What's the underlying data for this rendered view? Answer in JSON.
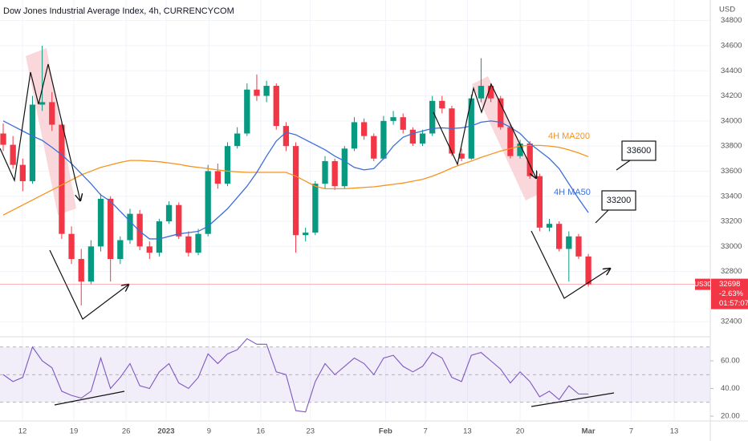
{
  "chart_data": {
    "type": "candlestick",
    "title": "Dow Jones Industrial Average Index, 4h, CURRENCYCOM",
    "currency": "USD",
    "symbol": "US30",
    "last_price": 32698,
    "change_label": "-2.63%",
    "countdown": "01:57:07",
    "up_color": "#089981",
    "down_color": "#f23645",
    "open": [
      33900,
      33810,
      33650,
      33520,
      34130,
      34150,
      33970,
      33100,
      32900,
      32720,
      33000,
      33380,
      32900,
      33050,
      33260,
      33000,
      32950,
      33200,
      33330,
      33080,
      32950,
      33100,
      33600,
      33500,
      33800,
      33900,
      34250,
      34200,
      34280,
      33960,
      33800,
      33090,
      33110,
      33500,
      33680,
      33480,
      33780,
      33990,
      33880,
      33700,
      34000,
      34030,
      33930,
      33820,
      33900,
      34160,
      34100,
      33740,
      33700,
      34180,
      34280,
      34180,
      33950,
      33720,
      33820,
      33560,
      33150,
      33180,
      32980,
      33080,
      32920
    ],
    "high": [
      33980,
      33880,
      33700,
      34200,
      34600,
      34230,
      34000,
      33160,
      32980,
      33050,
      33420,
      33400,
      33080,
      33300,
      33290,
      33040,
      33220,
      33360,
      33350,
      33120,
      33140,
      33650,
      33660,
      33830,
      33950,
      34300,
      34370,
      34320,
      34300,
      33990,
      33830,
      33150,
      33520,
      33720,
      33700,
      33800,
      34030,
      34020,
      33900,
      34040,
      34080,
      34060,
      33950,
      33930,
      34200,
      34200,
      34120,
      33780,
      34210,
      34500,
      34300,
      34200,
      33980,
      33850,
      33840,
      33580,
      33220,
      33200,
      33120,
      33100,
      32940
    ],
    "low": [
      33760,
      33620,
      33440,
      33500,
      34080,
      33920,
      33060,
      32860,
      32530,
      32700,
      32960,
      32720,
      32860,
      33020,
      32970,
      32900,
      32920,
      33180,
      33060,
      32920,
      32930,
      33080,
      33460,
      33480,
      33780,
      33880,
      34160,
      34150,
      33930,
      33760,
      32950,
      33040,
      33090,
      33460,
      33450,
      33460,
      33760,
      33850,
      33680,
      33690,
      33970,
      33900,
      33800,
      33800,
      33880,
      34060,
      33720,
      33680,
      33690,
      34150,
      34150,
      33930,
      33700,
      33700,
      33540,
      33120,
      33120,
      32960,
      32720,
      32900,
      32680
    ],
    "close": [
      33810,
      33650,
      33520,
      34130,
      34150,
      33970,
      33100,
      32900,
      32720,
      33000,
      33380,
      32900,
      33050,
      33260,
      33000,
      32950,
      33200,
      33330,
      33080,
      32950,
      33100,
      33600,
      33500,
      33800,
      33900,
      34250,
      34200,
      34280,
      33960,
      33800,
      33090,
      33110,
      33500,
      33680,
      33480,
      33780,
      33990,
      33880,
      33700,
      34000,
      34030,
      33930,
      33820,
      33900,
      34160,
      34100,
      33740,
      33700,
      34180,
      34280,
      34180,
      33950,
      33720,
      33820,
      33560,
      33150,
      33180,
      32980,
      33080,
      32920,
      32698
    ],
    "series": [
      {
        "name": "4H MA200",
        "color": "#f7931e",
        "values": [
          33250,
          33290,
          33330,
          33370,
          33410,
          33450,
          33490,
          33530,
          33570,
          33600,
          33630,
          33650,
          33670,
          33685,
          33685,
          33680,
          33675,
          33665,
          33655,
          33640,
          33630,
          33620,
          33610,
          33600,
          33595,
          33590,
          33590,
          33590,
          33590,
          33590,
          33560,
          33520,
          33480,
          33460,
          33460,
          33460,
          33465,
          33470,
          33475,
          33485,
          33495,
          33505,
          33520,
          33535,
          33560,
          33590,
          33625,
          33655,
          33680,
          33710,
          33735,
          33760,
          33780,
          33800,
          33805,
          33805,
          33800,
          33790,
          33770,
          33745,
          33715
        ]
      },
      {
        "name": "4H MA50",
        "color": "#3c6fd8",
        "values": [
          34000,
          33960,
          33920,
          33880,
          33845,
          33790,
          33730,
          33660,
          33580,
          33500,
          33410,
          33360,
          33280,
          33200,
          33120,
          33060,
          33060,
          33080,
          33100,
          33110,
          33120,
          33160,
          33230,
          33300,
          33390,
          33480,
          33590,
          33720,
          33840,
          33910,
          33890,
          33850,
          33810,
          33770,
          33720,
          33680,
          33630,
          33610,
          33620,
          33700,
          33800,
          33870,
          33900,
          33920,
          33940,
          33945,
          33940,
          33945,
          33960,
          33990,
          34000,
          33990,
          33950,
          33900,
          33820,
          33760,
          33700,
          33620,
          33500,
          33380,
          33270
        ]
      }
    ],
    "callouts": [
      "33600",
      "33200"
    ],
    "xlim": [
      -0.33,
      72.5
    ],
    "xticks": [
      {
        "value": 1.98,
        "label": "12"
      },
      {
        "value": 7.24,
        "label": "19"
      },
      {
        "value": 12.6,
        "label": "26"
      },
      {
        "value": 16.7,
        "label": "2023"
      },
      {
        "value": 21.1,
        "label": "9"
      },
      {
        "value": 26.4,
        "label": "16"
      },
      {
        "value": 31.5,
        "label": "23"
      },
      {
        "value": 39.2,
        "label": "Feb"
      },
      {
        "value": 43.3,
        "label": "7"
      },
      {
        "value": 47.6,
        "label": "13"
      },
      {
        "value": 53.0,
        "label": "20"
      },
      {
        "value": 60.0,
        "label": "Mar"
      },
      {
        "value": 64.4,
        "label": "7"
      },
      {
        "value": 68.8,
        "label": "13"
      }
    ],
    "ylim": [
      32280,
      34964
    ],
    "yticks": [
      32400,
      32800,
      33000,
      33200,
      33400,
      33600,
      33800,
      34000,
      34200,
      34400,
      34600,
      34800
    ],
    "rsi": {
      "color": "#7e57c2",
      "values": [
        50,
        45,
        48,
        70,
        60,
        55,
        38,
        35,
        33,
        38,
        62,
        40,
        48,
        58,
        42,
        40,
        52,
        58,
        44,
        40,
        48,
        65,
        58,
        65,
        68,
        76,
        72,
        72,
        52,
        50,
        24,
        23,
        45,
        58,
        50,
        56,
        62,
        58,
        50,
        62,
        64,
        56,
        52,
        56,
        66,
        62,
        48,
        45,
        64,
        66,
        60,
        54,
        44,
        52,
        45,
        34,
        38,
        32,
        42,
        36,
        36
      ],
      "ylim": [
        16.5,
        77.4
      ],
      "yticks": [
        {
          "value": 20,
          "label": "20.00"
        },
        {
          "value": 40,
          "label": "40.00"
        },
        {
          "value": 60,
          "label": "60.00"
        }
      ],
      "levels": [
        70,
        50,
        30
      ]
    }
  }
}
